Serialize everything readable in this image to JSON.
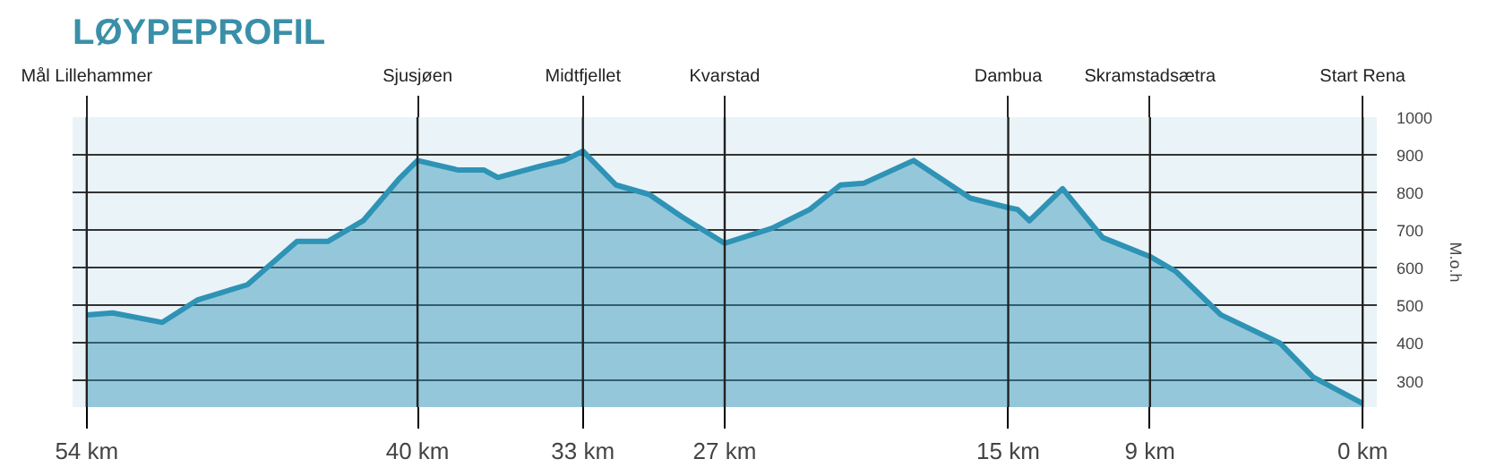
{
  "chart_data": {
    "type": "area",
    "title": "LØYPEPROFIL",
    "ylabel": "M.o.h",
    "x": [
      54,
      52.9,
      50.8,
      49.3,
      47.2,
      45.1,
      43.8,
      42.3,
      40.8,
      40,
      38.3,
      37.2,
      36.6,
      34.8,
      33.8,
      33,
      31.6,
      30.2,
      28.8,
      27,
      25.0,
      23.4,
      22.1,
      21.1,
      19.0,
      16.6,
      15,
      14.6,
      14.1,
      12.7,
      11.0,
      9,
      7.9,
      6.0,
      3.5,
      2.1,
      0
    ],
    "series": [
      {
        "color": "#2e93b5",
        "values": [
          475,
          480,
          455,
          515,
          555,
          670,
          670,
          725,
          835,
          885,
          860,
          860,
          840,
          870,
          885,
          910,
          820,
          795,
          735,
          665,
          705,
          755,
          820,
          825,
          885,
          785,
          760,
          755,
          725,
          810,
          680,
          630,
          590,
          475,
          400,
          310,
          240
        ]
      }
    ],
    "xlim": [
      54.6,
      -0.6
    ],
    "ylim": [
      230,
      1000
    ],
    "xticks": [
      {
        "value": 54,
        "label": "54 km"
      },
      {
        "value": 40,
        "label": "40 km"
      },
      {
        "value": 33,
        "label": "33 km"
      },
      {
        "value": 27,
        "label": "27 km"
      },
      {
        "value": 15,
        "label": "15 km"
      },
      {
        "value": 9,
        "label": "9 km"
      },
      {
        "value": 0,
        "label": "0 km"
      }
    ],
    "yticks": [
      300,
      400,
      500,
      600,
      700,
      800,
      900,
      1000
    ],
    "grid": "y",
    "ref_lines": [
      {
        "axis": "x",
        "value": 54,
        "label": "Mål Lillehammer",
        "color": "#222222"
      },
      {
        "axis": "x",
        "value": 40,
        "label": "Sjusjøen",
        "color": "#222222"
      },
      {
        "axis": "x",
        "value": 33,
        "label": "Midtfjellet",
        "color": "#222222"
      },
      {
        "axis": "x",
        "value": 27,
        "label": "Kvarstad",
        "color": "#222222"
      },
      {
        "axis": "x",
        "value": 15,
        "label": "Dambua",
        "color": "#222222"
      },
      {
        "axis": "x",
        "value": 9,
        "label": "Skramstadsætra",
        "color": "#222222"
      },
      {
        "axis": "x",
        "value": 0,
        "label": "Start Rena",
        "color": "#222222"
      }
    ]
  }
}
